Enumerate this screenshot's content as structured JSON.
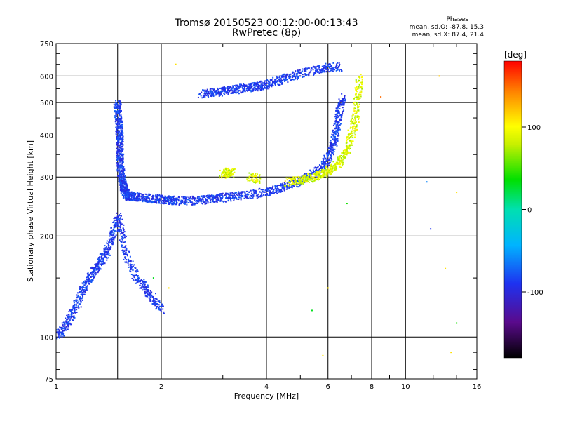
{
  "header": {
    "title_line1": "Tromsø 20150523 00:12:00-00:13:43",
    "title_line2": "RwPretec (8p)",
    "phase_title": "Phases",
    "phase_o": "mean, sd,O:  -87.8, 15.3",
    "phase_x": "mean, sd,X:  87.4, 21.4"
  },
  "colorbar": {
    "unit": "[deg]",
    "range": [
      -180,
      180
    ],
    "ticks": [
      {
        "value": 100,
        "label": "100"
      },
      {
        "value": 0,
        "label": "0"
      },
      {
        "value": -100,
        "label": "-100"
      }
    ]
  },
  "chart_data": {
    "type": "scatter",
    "title": "Tromsø 20150523 00:12:00-00:13:43",
    "subtitle": "RwPretec (8p)",
    "xlabel": "Frequency [MHz]",
    "ylabel": "Stationary phase Virtual Height [km]",
    "xscale": "log",
    "yscale": "log",
    "xlim": [
      1,
      16
    ],
    "ylim": [
      75,
      750
    ],
    "grid": true,
    "x_ticks": [
      1,
      2,
      4,
      6,
      8,
      10,
      16
    ],
    "x_ticklabels": [
      "1",
      "2",
      "4",
      "6",
      "8",
      "10",
      "16"
    ],
    "x_extra_gridlines": [
      1.5
    ],
    "y_ticks": [
      75,
      100,
      200,
      300,
      400,
      500,
      600,
      750
    ],
    "y_ticklabels": [
      "75",
      "100",
      "200",
      "300",
      "400",
      "500",
      "600",
      "750"
    ],
    "color_encoding": "phase [deg], colorbar -180 to 180",
    "series": [
      {
        "mode": "O",
        "phase_mean": -87.8,
        "phase_sd": 15.3,
        "color": "#1e3cf0",
        "segments": [
          {
            "x": [
              1.5,
              1.5,
              1.51,
              1.52,
              1.52,
              1.53,
              1.52,
              1.53,
              1.54,
              1.55,
              1.56,
              1.57,
              1.58,
              1.6,
              1.62
            ],
            "y": [
              500,
              470,
              440,
              410,
              390,
              360,
              340,
              320,
              300,
              290,
              280,
              275,
              270,
              265,
              262
            ]
          },
          {
            "x": [
              1.65,
              1.7,
              1.8,
              1.9,
              2.0,
              2.1,
              2.2,
              2.4,
              2.6,
              2.8,
              3.0,
              3.3,
              3.6,
              4.0,
              4.3,
              4.6,
              5.0,
              5.4,
              5.8
            ],
            "y": [
              262,
              262,
              260,
              258,
              257,
              256,
              255,
              255,
              256,
              258,
              260,
              263,
              266,
              270,
              275,
              283,
              292,
              305,
              320
            ]
          },
          {
            "x": [
              5.8,
              6.0,
              6.2,
              6.3,
              6.4,
              6.5,
              6.6
            ],
            "y": [
              320,
              340,
              370,
              400,
              440,
              480,
              520
            ]
          },
          {
            "x": [
              2.6,
              2.8,
              3.0,
              3.2,
              3.4,
              3.6,
              3.8,
              4.0,
              4.3,
              4.6,
              5.0,
              5.5,
              6.0,
              6.5
            ],
            "y": [
              530,
              535,
              540,
              545,
              550,
              555,
              560,
              565,
              580,
              595,
              610,
              625,
              635,
              640
            ]
          },
          {
            "x": [
              1.0,
              1.05,
              1.1,
              1.15,
              1.2,
              1.25,
              1.3,
              1.35,
              1.4,
              1.45,
              1.5,
              1.55,
              1.6,
              1.7,
              1.8,
              1.9,
              2.0
            ],
            "y": [
              100,
              105,
              115,
              125,
              140,
              150,
              160,
              170,
              180,
              200,
              230,
              200,
              170,
              150,
              140,
              130,
              120
            ]
          }
        ]
      },
      {
        "mode": "X",
        "phase_mean": 87.4,
        "phase_sd": 21.4,
        "color": "#e6e61e",
        "segments": [
          {
            "x": [
              4.6,
              5.0,
              5.3,
              5.6,
              5.9,
              6.2,
              6.5,
              6.8,
              7.0,
              7.2,
              7.3,
              7.4
            ],
            "y": [
              290,
              293,
              297,
              302,
              308,
              318,
              335,
              360,
              400,
              450,
              520,
              600
            ]
          },
          {
            "x": [
              3.0,
              3.1,
              3.2
            ],
            "y": [
              305,
              310,
              308
            ]
          },
          {
            "x": [
              3.6,
              3.8
            ],
            "y": [
              300,
              295
            ]
          }
        ]
      }
    ],
    "scattered_points": [
      {
        "x": 2.2,
        "y": 650,
        "phase": 110
      },
      {
        "x": 12.5,
        "y": 600,
        "phase": 120
      },
      {
        "x": 11.5,
        "y": 290,
        "phase": -60
      },
      {
        "x": 14.0,
        "y": 270,
        "phase": 110
      },
      {
        "x": 11.8,
        "y": 210,
        "phase": -90
      },
      {
        "x": 13.0,
        "y": 160,
        "phase": 110
      },
      {
        "x": 14.0,
        "y": 110,
        "phase": 40
      },
      {
        "x": 13.5,
        "y": 90,
        "phase": 110
      },
      {
        "x": 5.8,
        "y": 88,
        "phase": 110
      },
      {
        "x": 5.4,
        "y": 120,
        "phase": 30
      },
      {
        "x": 6.0,
        "y": 140,
        "phase": 110
      },
      {
        "x": 6.8,
        "y": 250,
        "phase": 40
      },
      {
        "x": 8.5,
        "y": 520,
        "phase": 150
      },
      {
        "x": 2.1,
        "y": 140,
        "phase": 110
      },
      {
        "x": 1.9,
        "y": 150,
        "phase": 30
      }
    ]
  }
}
